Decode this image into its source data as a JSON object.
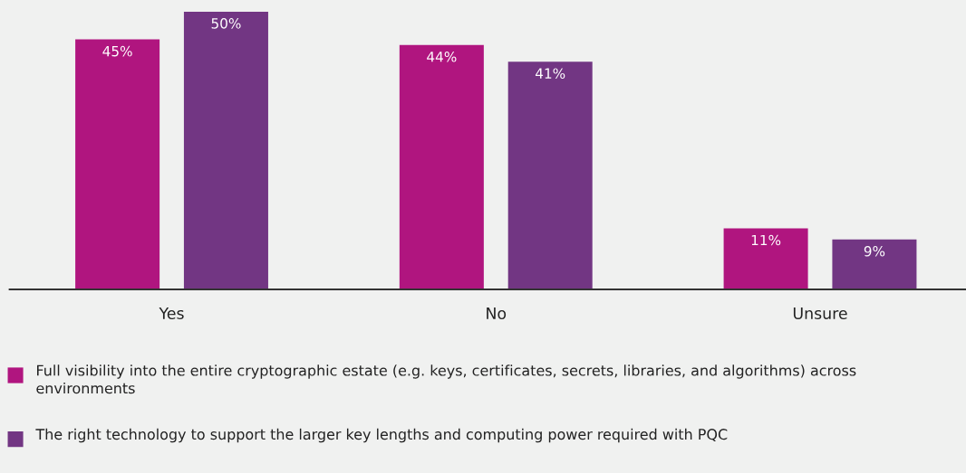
{
  "chart_data": {
    "type": "bar",
    "categories": [
      "Yes",
      "No",
      "Unsure"
    ],
    "series": [
      {
        "name": "Full visibility into the entire cryptographic estate (e.g. keys, certificates, secrets, libraries, and algorithms) across environments",
        "color": "#b0157f",
        "values": [
          45,
          44,
          11
        ],
        "value_labels": [
          "45%",
          "44%",
          "11%"
        ]
      },
      {
        "name": "The right technology to support the larger key lengths and computing power required with PQC",
        "color": "#723683",
        "values": [
          50,
          41,
          9
        ],
        "value_labels": [
          "50%",
          "41%",
          "9%"
        ]
      }
    ],
    "legend": "bottom",
    "grid": false
  }
}
